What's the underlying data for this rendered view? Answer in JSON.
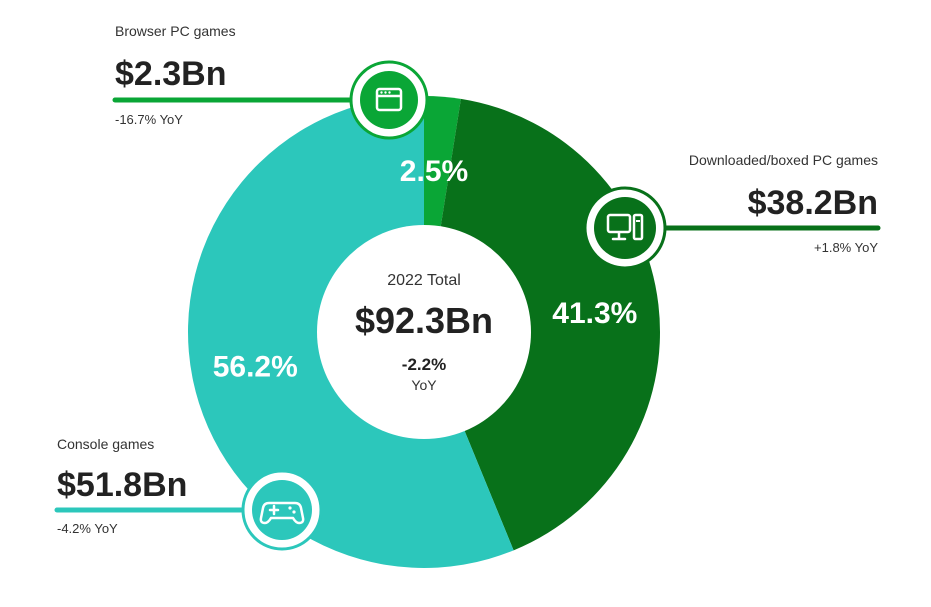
{
  "chart_data": {
    "type": "pie",
    "categories": [
      "Browser PC games",
      "Downloaded/boxed PC games",
      "Console games"
    ],
    "values": [
      2.5,
      41.3,
      56.2
    ],
    "value_labels": [
      "2.5%",
      "41.3%",
      "56.2%"
    ],
    "amounts": [
      "$2.3Bn",
      "$38.2Bn",
      "$51.8Bn"
    ],
    "yoy": [
      "-16.7% YoY",
      "+1.8% YoY",
      "-4.2% YoY"
    ],
    "colors": [
      "#0aa636",
      "#08711a",
      "#2cc7bb"
    ],
    "icons": [
      "browser-window-icon",
      "desktop-computer-icon",
      "gamepad-icon"
    ],
    "center": {
      "title": "2022 Total",
      "amount": "$92.3Bn",
      "change": "-2.2%",
      "change_unit": "YoY"
    }
  }
}
